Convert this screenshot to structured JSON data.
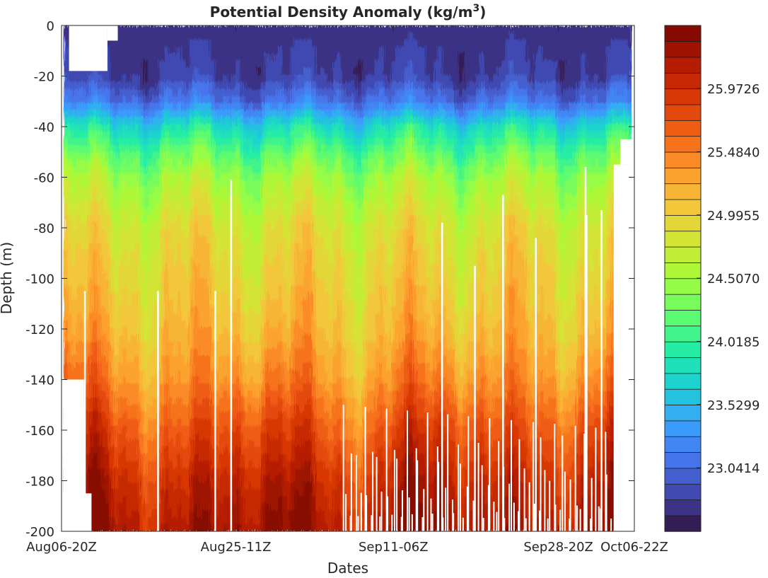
{
  "chart_data": {
    "type": "heatmap",
    "title": "Potential Density Anomaly (kg/m",
    "title_sup": "3",
    "title_close": ")",
    "xlabel": "Dates",
    "ylabel": "Depth  (m)",
    "ylim": [
      -200,
      0
    ],
    "yticks": [
      0,
      -20,
      -40,
      -60,
      -80,
      -100,
      -120,
      -140,
      -160,
      -180,
      -200
    ],
    "ytick_labels": [
      "0",
      "-20",
      "-40",
      "-60",
      "-80",
      "-100",
      "-120",
      "-140",
      "-160",
      "-180",
      "-200"
    ],
    "xlim_days": [
      0,
      61.1
    ],
    "xticks": [
      {
        "label": "Aug06-20Z",
        "day": 0
      },
      {
        "label": "Aug25-11Z",
        "day": 18.6
      },
      {
        "label": "Sep11-06Z",
        "day": 35.4
      },
      {
        "label": "Sep28-20Z",
        "day": 53.0
      },
      {
        "label": "Oct06-22Z",
        "day": 61.1
      }
    ],
    "colorbar": {
      "min": 22.55,
      "max": 26.46,
      "levels": 32,
      "tick_values": [
        23.0414,
        23.5299,
        24.0185,
        24.507,
        24.9955,
        25.484,
        25.9726
      ],
      "tick_labels": [
        "23.0414",
        "23.5299",
        "24.0185",
        "24.5070",
        "24.9955",
        "25.4840",
        "25.9726"
      ],
      "colormap": [
        "#30123b",
        "#4145ab",
        "#4675ed",
        "#39a2fc",
        "#1bcfd4",
        "#24eca6",
        "#61fc6c",
        "#a4fc3b",
        "#d1e834",
        "#f3c63a",
        "#fe9b2d",
        "#f36315",
        "#d93806",
        "#b11901",
        "#7a0402"
      ]
    },
    "depth_profile": [
      {
        "depth": 0,
        "value": 22.75
      },
      {
        "depth": -20,
        "value": 22.8
      },
      {
        "depth": -30,
        "value": 23.1
      },
      {
        "depth": -40,
        "value": 23.8
      },
      {
        "depth": -50,
        "value": 24.2
      },
      {
        "depth": -60,
        "value": 24.5
      },
      {
        "depth": -80,
        "value": 24.85
      },
      {
        "depth": -100,
        "value": 25.0
      },
      {
        "depth": -120,
        "value": 25.15
      },
      {
        "depth": -140,
        "value": 25.4
      },
      {
        "depth": -160,
        "value": 25.75
      },
      {
        "depth": -180,
        "value": 26.05
      },
      {
        "depth": -200,
        "value": 26.25
      }
    ],
    "gaps_days": [
      2.4,
      10.2,
      16.3,
      18.0,
      40.5,
      44.0,
      47.0,
      50.5,
      55.8,
      57.5,
      58.9
    ],
    "coverage": {
      "start_day": 0.2,
      "end_day": 60.8
    }
  }
}
